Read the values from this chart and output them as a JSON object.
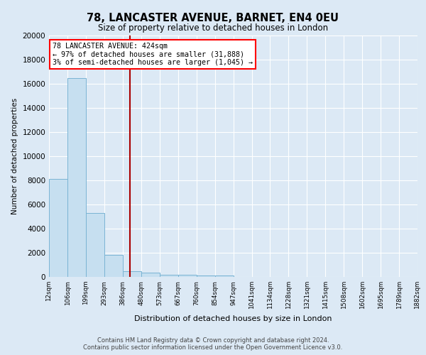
{
  "title": "78, LANCASTER AVENUE, BARNET, EN4 0EU",
  "subtitle": "Size of property relative to detached houses in London",
  "xlabel": "Distribution of detached houses by size in London",
  "ylabel": "Number of detached properties",
  "annotation_line1": "78 LANCASTER AVENUE: 424sqm",
  "annotation_line2": "← 97% of detached houses are smaller (31,888)",
  "annotation_line3": "3% of semi-detached houses are larger (1,045) →",
  "vertical_line_x": 424,
  "bar_color": "#c6dff0",
  "bar_edge_color": "#7ab4d4",
  "vline_color": "#aa0000",
  "background_color": "#dce9f5",
  "footer_line1": "Contains HM Land Registry data © Crown copyright and database right 2024.",
  "footer_line2": "Contains public sector information licensed under the Open Government Licence v3.0.",
  "bin_edges": [
    12,
    106,
    199,
    293,
    386,
    480,
    573,
    667,
    760,
    854,
    947,
    1041,
    1134,
    1228,
    1321,
    1415,
    1508,
    1602,
    1695,
    1789,
    1882
  ],
  "bin_labels": [
    "12sqm",
    "106sqm",
    "199sqm",
    "293sqm",
    "386sqm",
    "480sqm",
    "573sqm",
    "667sqm",
    "760sqm",
    "854sqm",
    "947sqm",
    "1041sqm",
    "1134sqm",
    "1228sqm",
    "1321sqm",
    "1415sqm",
    "1508sqm",
    "1602sqm",
    "1695sqm",
    "1789sqm",
    "1882sqm"
  ],
  "bar_heights": [
    8100,
    16500,
    5300,
    1850,
    500,
    330,
    200,
    160,
    130,
    90,
    0,
    0,
    0,
    0,
    0,
    0,
    0,
    0,
    0,
    0
  ],
  "ylim": [
    0,
    20000
  ],
  "yticks": [
    0,
    2000,
    4000,
    6000,
    8000,
    10000,
    12000,
    14000,
    16000,
    18000,
    20000
  ]
}
